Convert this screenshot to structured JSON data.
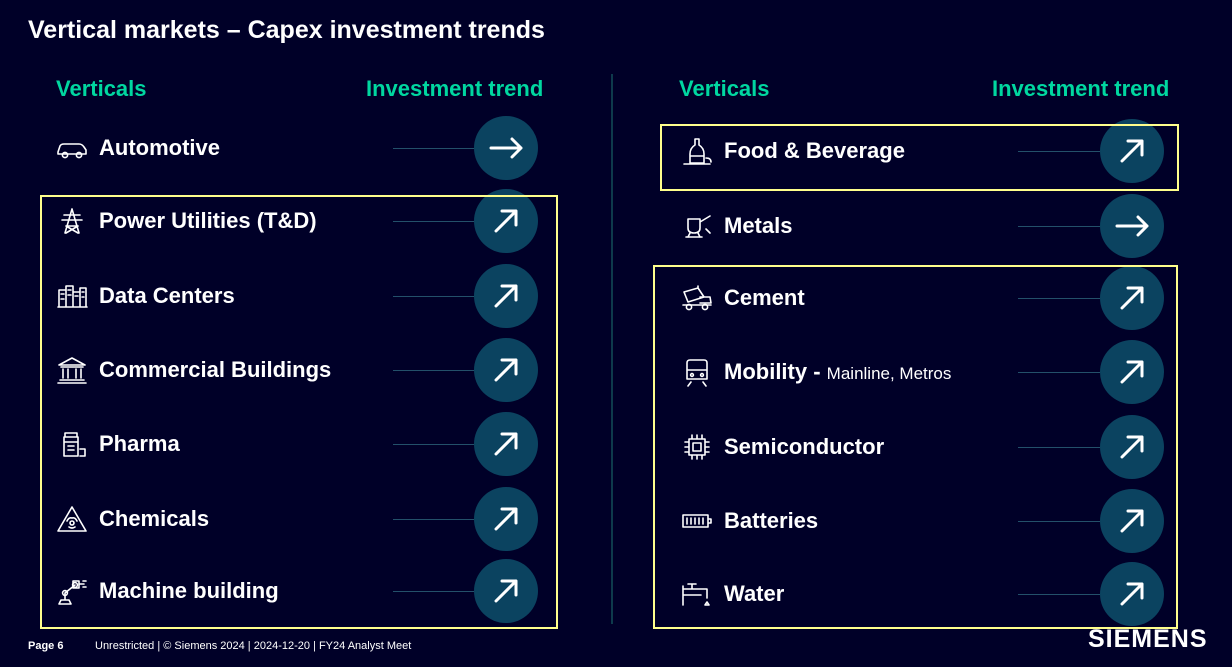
{
  "title": "Vertical markets – Capex investment trends",
  "left_column": {
    "header_verticals": "Verticals",
    "header_trend": "Investment trend",
    "items": [
      {
        "label": "Automotive",
        "icon": "car-icon",
        "trend": "flat"
      },
      {
        "label": "Power Utilities (T&D)",
        "icon": "power-tower-icon",
        "trend": "up"
      },
      {
        "label": "Data Centers",
        "icon": "server-rack-icon",
        "trend": "up"
      },
      {
        "label": "Commercial Buildings",
        "icon": "building-icon",
        "trend": "up"
      },
      {
        "label": "Pharma",
        "icon": "pill-bottle-icon",
        "trend": "up"
      },
      {
        "label": "Chemicals",
        "icon": "hazard-triangle-icon",
        "trend": "up"
      },
      {
        "label": "Machine building",
        "icon": "robot-arm-icon",
        "trend": "up"
      }
    ]
  },
  "right_column": {
    "header_verticals": "Verticals",
    "header_trend": "Investment trend",
    "items": [
      {
        "label": "Food & Beverage",
        "icon": "bottle-icon",
        "trend": "up"
      },
      {
        "label": "Metals",
        "icon": "ladle-icon",
        "trend": "flat"
      },
      {
        "label": "Cement",
        "icon": "cement-mixer-icon",
        "trend": "up"
      },
      {
        "label": "Mobility",
        "sub": "Mainline, Metros",
        "icon": "train-icon",
        "trend": "up"
      },
      {
        "label": "Semiconductor",
        "icon": "chip-icon",
        "trend": "up"
      },
      {
        "label": "Batteries",
        "icon": "battery-icon",
        "trend": "up"
      },
      {
        "label": "Water",
        "icon": "water-tap-icon",
        "trend": "up"
      }
    ]
  },
  "footer": {
    "page": "Page 6",
    "text": "Unrestricted | © Siemens 2024 | 2024-12-20 | FY24 Analyst Meet"
  },
  "logo": "SIEMENS",
  "colors": {
    "background": "#000028",
    "accent": "#00d7a0",
    "circle": "#0b4360",
    "highlight_box": "#ffff8c"
  }
}
